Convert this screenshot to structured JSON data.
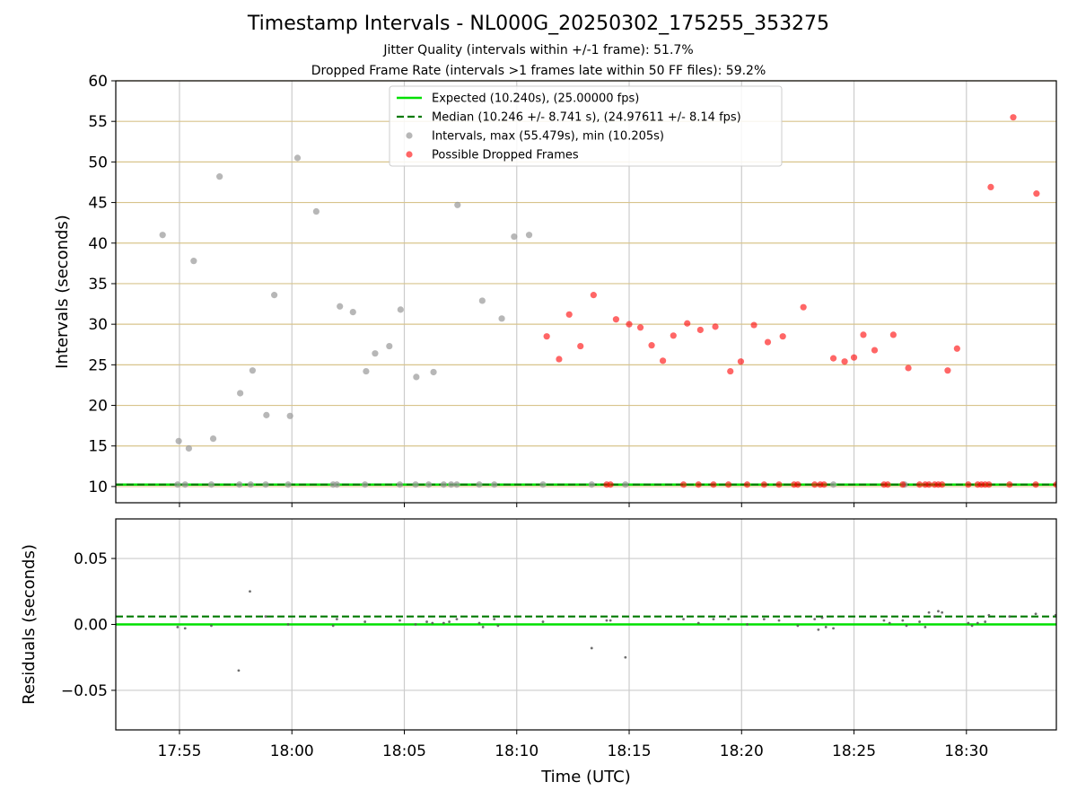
{
  "chart_data": {
    "type": "scatter",
    "title": "Timestamp Intervals - NL000G_20250302_175255_353275",
    "subtitle_lines": [
      "Jitter Quality (intervals within +/-1 frame): 51.7%",
      "Dropped Frame Rate (intervals >1 frames late within 50 FF files): 59.2%"
    ],
    "xlabel": "Time (UTC)",
    "x_ticks": [
      "17:55",
      "18:00",
      "18:05",
      "18:10",
      "18:15",
      "18:20",
      "18:25",
      "18:30"
    ],
    "x_range": [
      "17:52:10",
      "18:34:00"
    ],
    "panels": [
      {
        "name": "intervals",
        "ylabel": "Intervals (seconds)",
        "ylim": [
          8,
          60
        ],
        "y_ticks": [
          10,
          15,
          20,
          25,
          30,
          35,
          40,
          45,
          50,
          55,
          60
        ],
        "grid": "x gray, y tan",
        "legend_position": "top-center",
        "expected_line": {
          "value": 10.24,
          "color": "#00e000",
          "style": "solid"
        },
        "median_line": {
          "value": 10.246,
          "color": "#007a00",
          "style": "dashed"
        },
        "legend": [
          "Expected (10.240s), (25.00000 fps)",
          "Median (10.246 +/- 8.741 s), (24.97611 +/- 8.14 fps)",
          "Intervals, max (55.479s), min (10.205s)",
          "Possible Dropped Frames"
        ],
        "series": [
          {
            "name": "Intervals, max (55.479s), min (10.205s)",
            "color": "#999999",
            "points": [
              [
                "17:54:15",
                41.0
              ],
              [
                "17:54:58",
                15.6
              ],
              [
                "17:55:25",
                14.7
              ],
              [
                "17:55:38",
                37.8
              ],
              [
                "17:56:30",
                15.9
              ],
              [
                "17:56:47",
                48.2
              ],
              [
                "17:57:42",
                21.5
              ],
              [
                "17:58:15",
                24.3
              ],
              [
                "17:58:52",
                18.8
              ],
              [
                "17:59:13",
                33.6
              ],
              [
                "17:59:55",
                18.7
              ],
              [
                "18:00:15",
                50.5
              ],
              [
                "18:01:05",
                43.9
              ],
              [
                "18:02:08",
                32.2
              ],
              [
                "18:02:43",
                31.5
              ],
              [
                "18:03:18",
                24.2
              ],
              [
                "18:03:42",
                26.4
              ],
              [
                "18:04:20",
                27.3
              ],
              [
                "18:04:50",
                31.8
              ],
              [
                "18:05:32",
                23.5
              ],
              [
                "18:06:18",
                24.1
              ],
              [
                "18:07:22",
                44.7
              ],
              [
                "18:08:28",
                32.9
              ],
              [
                "18:09:20",
                30.7
              ],
              [
                "18:09:53",
                40.8
              ],
              [
                "18:10:33",
                41.0
              ],
              [
                "17:54:55",
                10.24
              ],
              [
                "17:55:15",
                10.24
              ],
              [
                "17:56:25",
                10.24
              ],
              [
                "17:57:40",
                10.24
              ],
              [
                "17:58:10",
                10.24
              ],
              [
                "17:58:50",
                10.24
              ],
              [
                "17:59:50",
                10.24
              ],
              [
                "18:01:50",
                10.24
              ],
              [
                "18:02:00",
                10.24
              ],
              [
                "18:03:15",
                10.24
              ],
              [
                "18:04:48",
                10.24
              ],
              [
                "18:05:30",
                10.24
              ],
              [
                "18:06:05",
                10.24
              ],
              [
                "18:06:45",
                10.24
              ],
              [
                "18:07:05",
                10.24
              ],
              [
                "18:07:20",
                10.24
              ],
              [
                "18:08:20",
                10.24
              ],
              [
                "18:09:00",
                10.24
              ],
              [
                "18:11:10",
                10.24
              ],
              [
                "18:13:20",
                10.24
              ],
              [
                "18:14:50",
                10.24
              ],
              [
                "18:24:05",
                10.24
              ],
              [
                "18:27:15",
                10.24
              ]
            ]
          },
          {
            "name": "Possible Dropped Frames",
            "color": "#ff0000",
            "points": [
              [
                "18:11:20",
                28.5
              ],
              [
                "18:11:53",
                25.7
              ],
              [
                "18:12:20",
                31.2
              ],
              [
                "18:12:50",
                27.3
              ],
              [
                "18:13:25",
                33.6
              ],
              [
                "18:14:25",
                30.6
              ],
              [
                "18:15:00",
                30.0
              ],
              [
                "18:15:30",
                29.6
              ],
              [
                "18:16:00",
                27.4
              ],
              [
                "18:16:30",
                25.5
              ],
              [
                "18:16:58",
                28.6
              ],
              [
                "18:17:35",
                30.1
              ],
              [
                "18:18:10",
                29.3
              ],
              [
                "18:18:50",
                29.7
              ],
              [
                "18:19:30",
                24.2
              ],
              [
                "18:19:58",
                25.4
              ],
              [
                "18:20:33",
                29.9
              ],
              [
                "18:21:10",
                27.8
              ],
              [
                "18:21:50",
                28.5
              ],
              [
                "18:22:45",
                32.1
              ],
              [
                "18:24:05",
                25.8
              ],
              [
                "18:24:35",
                25.4
              ],
              [
                "18:25:00",
                25.9
              ],
              [
                "18:25:25",
                28.7
              ],
              [
                "18:25:55",
                26.8
              ],
              [
                "18:26:45",
                28.7
              ],
              [
                "18:27:25",
                24.6
              ],
              [
                "18:29:10",
                24.3
              ],
              [
                "18:29:35",
                27.0
              ],
              [
                "18:31:05",
                46.9
              ],
              [
                "18:32:05",
                55.5
              ],
              [
                "18:33:07",
                46.1
              ],
              [
                "18:14:00",
                10.24
              ],
              [
                "18:14:10",
                10.24
              ],
              [
                "18:17:25",
                10.24
              ],
              [
                "18:18:05",
                10.24
              ],
              [
                "18:18:45",
                10.24
              ],
              [
                "18:19:25",
                10.24
              ],
              [
                "18:20:15",
                10.24
              ],
              [
                "18:21:00",
                10.24
              ],
              [
                "18:21:40",
                10.24
              ],
              [
                "18:22:20",
                10.24
              ],
              [
                "18:22:30",
                10.24
              ],
              [
                "18:23:15",
                10.24
              ],
              [
                "18:23:30",
                10.24
              ],
              [
                "18:23:40",
                10.24
              ],
              [
                "18:26:20",
                10.24
              ],
              [
                "18:26:30",
                10.24
              ],
              [
                "18:27:10",
                10.24
              ],
              [
                "18:27:55",
                10.24
              ],
              [
                "18:28:10",
                10.24
              ],
              [
                "18:28:20",
                10.24
              ],
              [
                "18:28:35",
                10.24
              ],
              [
                "18:28:45",
                10.24
              ],
              [
                "18:28:55",
                10.24
              ],
              [
                "18:30:05",
                10.24
              ],
              [
                "18:30:30",
                10.24
              ],
              [
                "18:30:40",
                10.24
              ],
              [
                "18:30:50",
                10.24
              ],
              [
                "18:31:00",
                10.24
              ],
              [
                "18:31:55",
                10.24
              ],
              [
                "18:33:05",
                10.24
              ],
              [
                "18:34:00",
                10.24
              ]
            ]
          }
        ]
      },
      {
        "name": "residuals",
        "ylabel": "Residuals (seconds)",
        "ylim": [
          -0.08,
          0.08
        ],
        "y_ticks": [
          0.05,
          0.0,
          -0.05
        ],
        "y_tick_labels": [
          "0.05",
          "0.00",
          "−0.05"
        ],
        "grid": "x and y gray",
        "expected_line": {
          "value": 0.0,
          "color": "#00e000",
          "style": "solid"
        },
        "median_line": {
          "value": 0.006,
          "color": "#007a00",
          "style": "dashed"
        },
        "series": [
          {
            "name": "Residuals",
            "color": "#555555",
            "points": [
              [
                "17:54:55",
                -0.002
              ],
              [
                "17:55:15",
                -0.003
              ],
              [
                "17:56:25",
                -0.001
              ],
              [
                "17:57:38",
                -0.035
              ],
              [
                "17:58:08",
                0.025
              ],
              [
                "17:58:50",
                0.006
              ],
              [
                "17:59:50",
                0.0
              ],
              [
                "18:01:50",
                -0.001
              ],
              [
                "18:02:00",
                0.004
              ],
              [
                "18:03:15",
                0.002
              ],
              [
                "18:04:48",
                0.003
              ],
              [
                "18:05:30",
                0.0
              ],
              [
                "18:06:00",
                0.002
              ],
              [
                "18:06:15",
                0.001
              ],
              [
                "18:06:45",
                0.001
              ],
              [
                "18:07:00",
                0.002
              ],
              [
                "18:07:20",
                0.004
              ],
              [
                "18:08:20",
                0.001
              ],
              [
                "18:08:30",
                -0.002
              ],
              [
                "18:09:00",
                0.004
              ],
              [
                "18:09:10",
                -0.001
              ],
              [
                "18:11:10",
                0.002
              ],
              [
                "18:13:20",
                -0.018
              ],
              [
                "18:14:00",
                0.003
              ],
              [
                "18:14:10",
                0.003
              ],
              [
                "18:14:50",
                -0.025
              ],
              [
                "18:17:25",
                0.004
              ],
              [
                "18:18:05",
                0.001
              ],
              [
                "18:18:45",
                0.004
              ],
              [
                "18:19:25",
                0.004
              ],
              [
                "18:20:15",
                0.0
              ],
              [
                "18:21:00",
                0.004
              ],
              [
                "18:21:40",
                0.003
              ],
              [
                "18:22:30",
                -0.001
              ],
              [
                "18:23:15",
                0.004
              ],
              [
                "18:23:25",
                -0.004
              ],
              [
                "18:23:35",
                0.005
              ],
              [
                "18:23:45",
                -0.002
              ],
              [
                "18:24:05",
                -0.003
              ],
              [
                "18:26:20",
                0.003
              ],
              [
                "18:26:35",
                0.001
              ],
              [
                "18:27:10",
                0.003
              ],
              [
                "18:27:20",
                -0.001
              ],
              [
                "18:27:55",
                0.002
              ],
              [
                "18:28:10",
                -0.002
              ],
              [
                "18:28:20",
                0.009
              ],
              [
                "18:28:35",
                0.006
              ],
              [
                "18:28:45",
                0.01
              ],
              [
                "18:28:55",
                0.009
              ],
              [
                "18:30:05",
                0.001
              ],
              [
                "18:30:15",
                -0.001
              ],
              [
                "18:30:30",
                0.001
              ],
              [
                "18:30:50",
                0.002
              ],
              [
                "18:31:00",
                0.007
              ],
              [
                "18:31:55",
                0.006
              ],
              [
                "18:33:05",
                0.008
              ],
              [
                "18:33:58",
                0.007
              ]
            ]
          }
        ]
      }
    ]
  }
}
